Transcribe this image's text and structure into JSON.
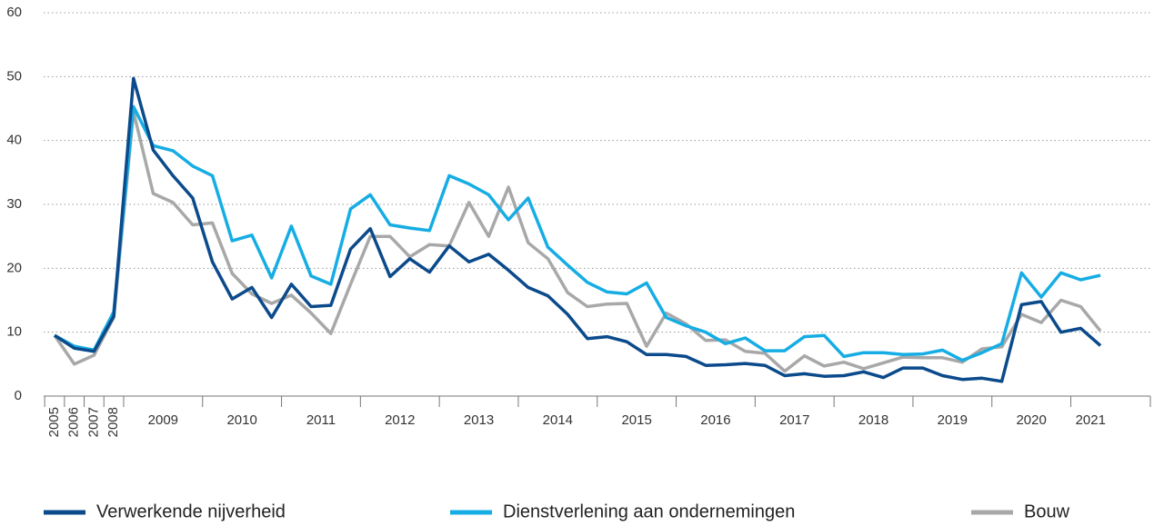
{
  "chart_data": {
    "type": "line",
    "categories": [
      "2005",
      "2006",
      "2007",
      "2008",
      "2009",
      null,
      null,
      null,
      "2010",
      null,
      null,
      null,
      "2011",
      null,
      null,
      null,
      "2012",
      null,
      null,
      null,
      "2013",
      null,
      null,
      null,
      "2014",
      null,
      null,
      null,
      "2015",
      null,
      null,
      null,
      "2016",
      null,
      null,
      null,
      "2017",
      null,
      null,
      null,
      "2018",
      null,
      null,
      null,
      "2019",
      null,
      null,
      null,
      "2020",
      null,
      null,
      null,
      "2021",
      null
    ],
    "series": [
      {
        "name": "Verwerkende nijverheid",
        "color": "#0b4a8b",
        "values": [
          9.5,
          7.5,
          7,
          12.5,
          49.7,
          38.5,
          34.5,
          31,
          21,
          15.2,
          17,
          12.3,
          17.5,
          14,
          14.2,
          23,
          26.2,
          18.7,
          21.5,
          19.4,
          23.5,
          21,
          22.2,
          19.7,
          17,
          15.7,
          12.8,
          9,
          9.3,
          8.5,
          6.5,
          6.5,
          6.2,
          4.8,
          4.9,
          5.1,
          4.8,
          3.2,
          3.5,
          3.1,
          3.2,
          3.8,
          2.9,
          4.4,
          4.4,
          3.2,
          2.6,
          2.8,
          2.3,
          14.3,
          14.8,
          10,
          10.6,
          7.9
        ]
      },
      {
        "name": "Dienstverlening aan ondernemingen",
        "color": "#16ade4",
        "values": [
          9.5,
          7.8,
          7.2,
          13.2,
          45.3,
          39.2,
          38.4,
          36,
          34.5,
          24.3,
          25.2,
          18.5,
          26.6,
          18.8,
          17.5,
          29.3,
          31.5,
          26.8,
          26.3,
          25.9,
          34.5,
          33.2,
          31.5,
          27.6,
          31,
          23.3,
          20.5,
          17.8,
          16.3,
          16,
          17.7,
          12.3,
          11,
          10,
          8.2,
          9.1,
          7.1,
          7.1,
          9.3,
          9.5,
          6.2,
          6.8,
          6.8,
          6.5,
          6.6,
          7.2,
          5.6,
          6.8,
          8.2,
          19.3,
          15.5,
          19.3,
          18.2,
          18.9
        ]
      },
      {
        "name": "Bouw",
        "color": "#a8a8a8",
        "values": [
          9.5,
          5,
          6.4,
          12.3,
          44.5,
          31.7,
          30.3,
          26.8,
          27.1,
          19.2,
          16,
          14.5,
          15.8,
          13,
          9.8,
          17.5,
          25,
          25,
          21.8,
          23.7,
          23.5,
          30.3,
          25,
          32.7,
          24,
          21.5,
          16.2,
          14,
          14.4,
          14.5,
          7.8,
          13,
          11.3,
          8.7,
          8.8,
          7,
          6.7,
          3.9,
          6.3,
          4.7,
          5.3,
          4.3,
          5.2,
          6.1,
          6,
          6,
          5.3,
          7.4,
          7.7,
          12.8,
          11.5,
          15,
          14,
          10.2
        ]
      }
    ],
    "ylim": [
      0,
      60
    ],
    "yticks": [
      0,
      10,
      20,
      30,
      40,
      50,
      60
    ],
    "grid": true,
    "legend": "bottom"
  }
}
